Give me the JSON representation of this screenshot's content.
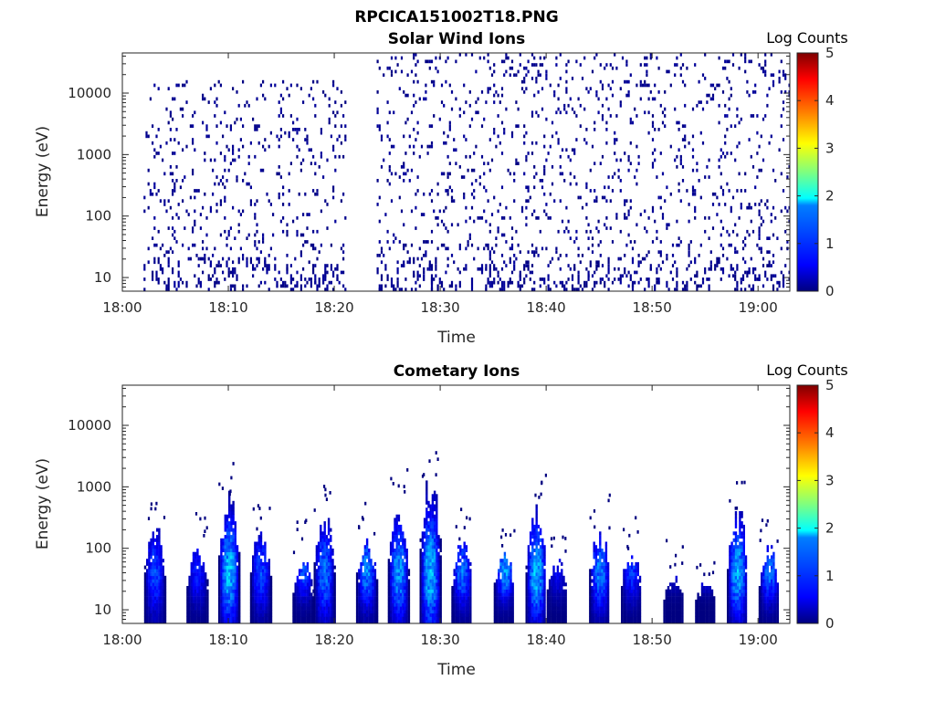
{
  "figure": {
    "title": "RPCICA151002T18.PNG"
  },
  "colors": {
    "dark_blue": "#00007f",
    "axis": "#262626",
    "colormap": [
      "#00007f",
      "#0000ff",
      "#007fff",
      "#00ffff",
      "#7fff7f",
      "#ffff00",
      "#ff7f00",
      "#ff0000",
      "#7f0000"
    ]
  },
  "chart_data": [
    {
      "type": "heatmap",
      "title": "Solar Wind Ions",
      "xlabel": "Time",
      "ylabel": "Energy (eV)",
      "y_scale": "log",
      "xlim": [
        "18:00",
        "19:03"
      ],
      "ylim": [
        6,
        45000
      ],
      "x_ticks": [
        "18:00",
        "18:10",
        "18:20",
        "18:30",
        "18:40",
        "18:50",
        "19:00"
      ],
      "y_ticks": [
        "10",
        "100",
        "1000",
        "10000"
      ],
      "colorbar": {
        "label": "Log Counts",
        "range": [
          0,
          5
        ],
        "ticks": [
          "0",
          "1",
          "2",
          "3",
          "4",
          "5"
        ]
      },
      "data_gap": [
        "18:21",
        "18:24"
      ],
      "segments": [
        {
          "start": "18:02",
          "end": "18:21",
          "max_energy_ev": 16000,
          "typical_log_counts": 0
        },
        {
          "start": "18:24",
          "end": "19:03",
          "max_energy_ev": 40000,
          "typical_log_counts": 0
        }
      ]
    },
    {
      "type": "heatmap",
      "title": "Cometary Ions",
      "xlabel": "Time",
      "ylabel": "Energy (eV)",
      "y_scale": "log",
      "xlim": [
        "18:00",
        "19:03"
      ],
      "ylim": [
        6,
        45000
      ],
      "x_ticks": [
        "18:00",
        "18:10",
        "18:20",
        "18:30",
        "18:40",
        "18:50",
        "19:00"
      ],
      "y_ticks": [
        "10",
        "100",
        "1000",
        "10000"
      ],
      "colorbar": {
        "label": "Log Counts",
        "range": [
          0,
          5
        ],
        "ticks": [
          "0",
          "1",
          "2",
          "3",
          "4",
          "5"
        ]
      },
      "bursts": [
        {
          "time": "18:03",
          "peak_energy_ev": 200,
          "max_log_counts": 1.0
        },
        {
          "time": "18:07",
          "peak_energy_ev": 90,
          "max_log_counts": 0.8
        },
        {
          "time": "18:10",
          "peak_energy_ev": 500,
          "max_log_counts": 1.6
        },
        {
          "time": "18:13",
          "peak_energy_ev": 150,
          "max_log_counts": 1.0
        },
        {
          "time": "18:17",
          "peak_energy_ev": 60,
          "max_log_counts": 1.0
        },
        {
          "time": "18:19",
          "peak_energy_ev": 300,
          "max_log_counts": 1.2
        },
        {
          "time": "18:23",
          "peak_energy_ev": 120,
          "max_log_counts": 1.3
        },
        {
          "time": "18:26",
          "peak_energy_ev": 400,
          "max_log_counts": 1.4
        },
        {
          "time": "18:29",
          "peak_energy_ev": 900,
          "max_log_counts": 1.6
        },
        {
          "time": "18:32",
          "peak_energy_ev": 100,
          "max_log_counts": 1.2
        },
        {
          "time": "18:36",
          "peak_energy_ev": 60,
          "max_log_counts": 1.4
        },
        {
          "time": "18:39",
          "peak_energy_ev": 350,
          "max_log_counts": 1.6
        },
        {
          "time": "18:41",
          "peak_energy_ev": 50,
          "max_log_counts": 0.6
        },
        {
          "time": "18:45",
          "peak_energy_ev": 150,
          "max_log_counts": 1.3
        },
        {
          "time": "18:48",
          "peak_energy_ev": 70,
          "max_log_counts": 0.9
        },
        {
          "time": "18:52",
          "peak_energy_ev": 30,
          "max_log_counts": 0.5
        },
        {
          "time": "18:55",
          "peak_energy_ev": 25,
          "max_log_counts": 1.1
        },
        {
          "time": "18:58",
          "peak_energy_ev": 300,
          "max_log_counts": 1.5
        },
        {
          "time": "19:01",
          "peak_energy_ev": 80,
          "max_log_counts": 1.2
        }
      ]
    }
  ]
}
